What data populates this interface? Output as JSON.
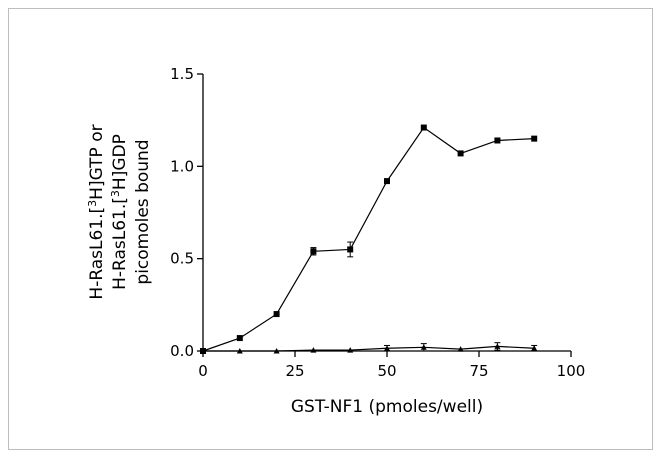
{
  "chart_data": {
    "type": "line",
    "xlabel": "GST-NF1 (pmoles/well)",
    "ylabel": {
      "line1": [
        "H-RasL61.[",
        "3",
        "H]GTP or"
      ],
      "line2": [
        "H-RasL61.[",
        "3",
        "H]GDP"
      ],
      "line3": "picomoles bound"
    },
    "xlim": [
      0,
      100
    ],
    "ylim": [
      0.0,
      1.5
    ],
    "xticks": [
      0,
      25,
      50,
      75,
      100
    ],
    "yticks": [
      0.0,
      0.5,
      1.0,
      1.5
    ],
    "xtick_labels": [
      "0",
      "25",
      "50",
      "75",
      "100"
    ],
    "ytick_labels": [
      "0.0",
      "0.5",
      "1.0",
      "1.5"
    ],
    "grid": false,
    "series": [
      {
        "marker": "square",
        "color": "#000000",
        "x": [
          0,
          10,
          20,
          30,
          40,
          50,
          60,
          70,
          80,
          90
        ],
        "y": [
          0.0,
          0.07,
          0.2,
          0.54,
          0.55,
          0.92,
          1.21,
          1.07,
          1.14,
          1.15
        ],
        "err": [
          0,
          0,
          0,
          0.02,
          0.04,
          0,
          0,
          0,
          0,
          0
        ]
      },
      {
        "marker": "triangle",
        "color": "#000000",
        "x": [
          0,
          10,
          20,
          30,
          40,
          50,
          60,
          70,
          80,
          90
        ],
        "y": [
          0.0,
          0.0,
          0.0,
          0.005,
          0.005,
          0.015,
          0.02,
          0.01,
          0.025,
          0.015
        ],
        "err": [
          0,
          0,
          0,
          0,
          0,
          0.015,
          0.02,
          0,
          0.02,
          0.015
        ]
      }
    ]
  }
}
